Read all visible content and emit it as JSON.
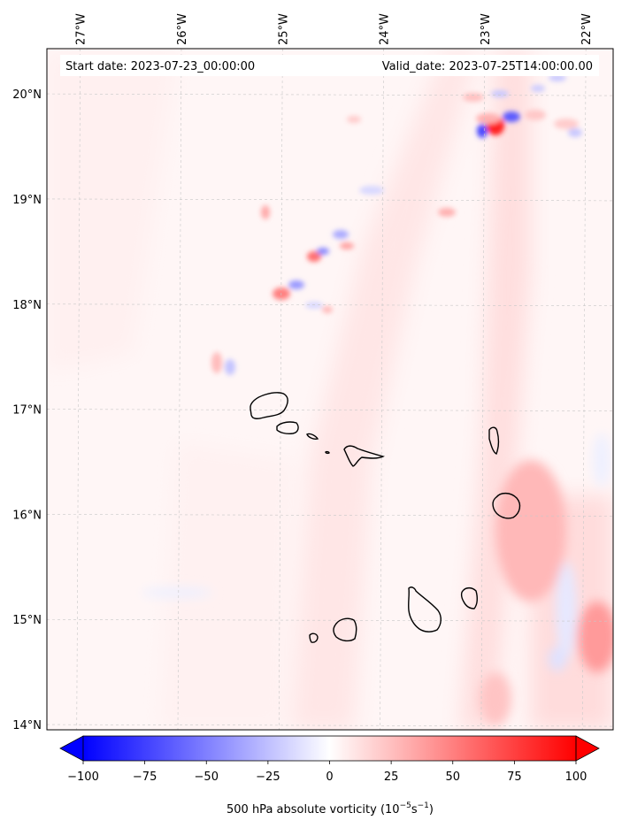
{
  "map": {
    "extent": {
      "lon_min": -27.33,
      "lon_max": -21.73,
      "lat_min": 13.95,
      "lat_max": 20.43
    },
    "lon_ticks": [
      -27,
      -26,
      -25,
      -24,
      -23,
      -22
    ],
    "lon_tick_labels": [
      "27°W",
      "26°W",
      "25°W",
      "24°W",
      "23°W",
      "22°W"
    ],
    "lat_ticks": [
      20,
      19,
      18,
      17,
      16,
      15,
      14
    ],
    "lat_tick_labels": [
      "20°N",
      "19°N",
      "18°N",
      "17°N",
      "16°N",
      "15°N",
      "14°N"
    ],
    "gridlines": true,
    "start_date_text": "Start date: 2023-07-23_00:00:00",
    "valid_date_text": "Valid_date: 2023-07-25T14:00:00.00",
    "field": "500 hPa absolute vorticity",
    "islands": [
      "Santo Antão",
      "São Vicente",
      "Santa Luzia",
      "Branco",
      "Raso",
      "São Nicolau",
      "Sal",
      "Boa Vista",
      "Maio",
      "Santiago",
      "Fogo",
      "Brava"
    ],
    "coastline_color": "#000000"
  },
  "colorbar": {
    "min": -100,
    "max": 100,
    "extend": "both",
    "colormap": "bwr",
    "low_color": "#0000ff",
    "mid_color": "#ffffff",
    "high_color": "#ff0000",
    "ticks": [
      -100,
      -75,
      -50,
      -25,
      0,
      25,
      50,
      75,
      100
    ],
    "tick_labels": [
      "−100",
      "−75",
      "−50",
      "−25",
      "0",
      "25",
      "50",
      "75",
      "100"
    ],
    "label_main": "500 hPa absolute vorticity (10",
    "label_exp1": "−5",
    "label_mid": "s",
    "label_exp2": "−1",
    "label_end": ")"
  }
}
